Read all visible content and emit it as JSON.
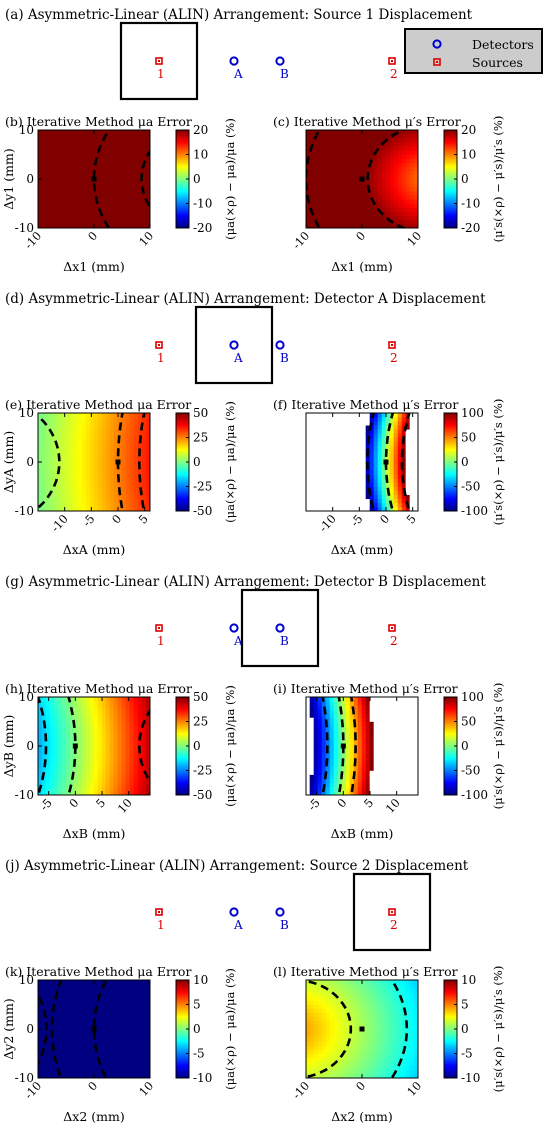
{
  "panels": {
    "a": {
      "title": "(a) Asymmetric-Linear (ALIN) Arrangement: Source 1 Displacement",
      "box_on": "source_1"
    },
    "d": {
      "title": "(d) Asymmetric-Linear (ALIN) Arrangement: Detector A Displacement",
      "box_on": "detector_A"
    },
    "g": {
      "title": "(g) Asymmetric-Linear (ALIN) Arrangement: Detector B Displacement",
      "box_on": "detector_B"
    },
    "j": {
      "title": "(j) Asymmetric-Linear (ALIN) Arrangement: Source 2 Displacement",
      "box_on": "source_2"
    }
  },
  "arrangement": {
    "labels": {
      "s1": "1",
      "dA": "A",
      "dB": "B",
      "s2": "2"
    },
    "legend": {
      "detectors": "Detectors",
      "sources": "Sources"
    },
    "colors": {
      "detector": "#0000cc",
      "source": "#dd0000"
    }
  },
  "chart_data": [
    {
      "id": "b",
      "type": "heatmap",
      "title": "(b) Iterative Method μa Error",
      "xlabel": "Δx1 (mm)",
      "ylabel": "Δy1 (mm)",
      "clabel": "(μa(×ρ) − μa)/μa (%)",
      "xlim": [
        -10,
        10
      ],
      "ylim": [
        -10,
        10
      ],
      "xticks": [
        -10,
        0,
        10
      ],
      "yticks": [
        10,
        0,
        -10
      ],
      "clim": [
        -20,
        20
      ],
      "cticks": [
        20,
        10,
        0,
        -10,
        -20
      ],
      "colormap": "jet",
      "field": {
        "kind": "radial",
        "cx": 20,
        "cy": 0,
        "k": 0.9,
        "c0": 20
      },
      "contours": [
        {
          "kind": "arc",
          "cx": 20,
          "cy": 0,
          "r": 20
        },
        {
          "kind": "arc",
          "cx": 20,
          "cy": 0,
          "r": 11.5
        }
      ],
      "marker": [
        0,
        0
      ]
    },
    {
      "id": "c",
      "type": "heatmap",
      "title": "(c) Iterative Method μ′s Error",
      "xlabel": "Δx1 (mm)",
      "ylabel": "",
      "clabel": "(μ′s(×ρ) − μ′s)/μ′s (%)",
      "xlim": [
        -10,
        10
      ],
      "ylim": [
        -10,
        10
      ],
      "xticks": [
        -10,
        0,
        10
      ],
      "yticks": [],
      "clim": [
        -20,
        20
      ],
      "cticks": [
        20,
        10,
        0,
        -10,
        -20
      ],
      "colormap": "jet",
      "field": {
        "kind": "radial",
        "cx": 12,
        "cy": 0,
        "k": 0.95,
        "c0": 9
      },
      "contours": [
        {
          "kind": "arc",
          "cx": 12,
          "cy": 0,
          "r": 11
        },
        {
          "kind": "arc",
          "cx": 12,
          "cy": 0,
          "r": 22
        }
      ],
      "marker": [
        0,
        0
      ]
    },
    {
      "id": "e",
      "type": "heatmap",
      "title": "(e) Iterative Method μa Error",
      "xlabel": "ΔxA (mm)",
      "ylabel": "ΔyA (mm)",
      "clabel": "(μa(×ρ) − μa)/μa (%)",
      "xlim": [
        -15,
        6
      ],
      "ylim": [
        -10,
        10
      ],
      "xticks": [
        -10,
        -5,
        0,
        5
      ],
      "yticks": [
        10,
        0,
        -10
      ],
      "clim": [
        -50,
        50
      ],
      "cticks": [
        50,
        25,
        0,
        -25,
        -50
      ],
      "colormap": "jet",
      "field": {
        "kind": "band",
        "cx": 60,
        "cy": 0,
        "a": -1.8,
        "b": 0.008,
        "c0": 25
      },
      "contours": [
        {
          "kind": "arc",
          "cx": 60,
          "cy": 0,
          "r": 60
        },
        {
          "kind": "arc",
          "cx": 60,
          "cy": 0,
          "r": 56
        },
        {
          "kind": "arc",
          "cx": -24,
          "cy": 0,
          "r": 13
        }
      ],
      "marker": [
        0,
        0
      ]
    },
    {
      "id": "f",
      "type": "heatmap",
      "title": "(f) Iterative Method μ′s Error",
      "xlabel": "ΔxA (mm)",
      "ylabel": "",
      "clabel": "(μ′s(×ρ) − μ′s)/μ′s (%)",
      "xlim": [
        -15,
        6
      ],
      "ylim": [
        -10,
        10
      ],
      "xticks": [
        -10,
        -5,
        0,
        5
      ],
      "yticks": [],
      "clim": [
        -100,
        100
      ],
      "cticks": [
        100,
        50,
        0,
        -50,
        -100
      ],
      "colormap": "jet",
      "field": {
        "kind": "band",
        "cx": 40,
        "cy": 0,
        "a": -27,
        "b": 0.05,
        "c0": 6,
        "cut": 100
      },
      "contours": [
        {
          "kind": "arc",
          "cx": 40,
          "cy": 0,
          "r": 40
        },
        {
          "kind": "arc",
          "cx": 40,
          "cy": 0,
          "r": 43.5
        },
        {
          "kind": "arc",
          "cx": 40,
          "cy": 0,
          "r": 37
        }
      ],
      "marker": [
        0,
        0
      ]
    },
    {
      "id": "h",
      "type": "heatmap",
      "title": "(h) Iterative Method μa Error",
      "xlabel": "ΔxB (mm)",
      "ylabel": "ΔyB (mm)",
      "clabel": "(μa(×ρ) − μa)/μa (%)",
      "xlim": [
        -7,
        14
      ],
      "ylim": [
        -10,
        10
      ],
      "xticks": [
        -5,
        0,
        5,
        10
      ],
      "yticks": [
        10,
        0,
        -10
      ],
      "clim": [
        -50,
        50
      ],
      "cticks": [
        50,
        25,
        0,
        -25,
        -50
      ],
      "colormap": "jet",
      "field": {
        "kind": "band",
        "cx": -40,
        "cy": 0,
        "a": 2.9,
        "b": 0.012,
        "c0": 0
      },
      "contours": [
        {
          "kind": "arc",
          "cx": -40,
          "cy": 0,
          "r": 40
        },
        {
          "kind": "arc",
          "cx": -40,
          "cy": 0,
          "r": 34.5
        },
        {
          "kind": "arc",
          "cx": 26,
          "cy": 0,
          "r": 14
        }
      ],
      "marker": [
        0,
        0
      ]
    },
    {
      "id": "i",
      "type": "heatmap",
      "title": "(i) Iterative Method μ′s Error",
      "xlabel": "ΔxB (mm)",
      "ylabel": "",
      "clabel": "(μ′s(×ρ) − μ′s)/μ′s (%)",
      "xlim": [
        -7,
        14
      ],
      "ylim": [
        -10,
        10
      ],
      "xticks": [
        -5,
        0,
        5,
        10
      ],
      "yticks": [],
      "clim": [
        -100,
        100
      ],
      "cticks": [
        100,
        50,
        0,
        -50,
        -100
      ],
      "colormap": "jet",
      "field": {
        "kind": "band",
        "cx": -60,
        "cy": 0,
        "a": 18,
        "b": 0.01,
        "c0": 0,
        "cut": 100
      },
      "contours": [
        {
          "kind": "arc",
          "cx": -60,
          "cy": 0,
          "r": 60
        },
        {
          "kind": "arc",
          "cx": -60,
          "cy": 0,
          "r": 57
        },
        {
          "kind": "arc",
          "cx": -60,
          "cy": 0,
          "r": 62.3
        }
      ],
      "marker": [
        0,
        0
      ]
    },
    {
      "id": "k",
      "type": "heatmap",
      "title": "(k) Iterative Method μa Error",
      "xlabel": "Δx2 (mm)",
      "ylabel": "Δy2 (mm)",
      "clabel": "(μa(×ρ) − μa)/μa (%)",
      "xlim": [
        -10,
        10
      ],
      "ylim": [
        -10,
        10
      ],
      "xticks": [
        -10,
        0,
        10
      ],
      "yticks": [
        10,
        0,
        -10
      ],
      "clim": [
        -10,
        10
      ],
      "cticks": [
        10,
        5,
        0,
        -5,
        -10
      ],
      "colormap": "jet",
      "field": {
        "kind": "radial",
        "cx": 24,
        "cy": 0,
        "k": -0.38,
        "c0": -9
      },
      "contours": [
        {
          "kind": "arc",
          "cx": 24,
          "cy": 0,
          "r": 24
        },
        {
          "kind": "arc",
          "cx": 24,
          "cy": 0,
          "r": 31.5
        },
        {
          "kind": "arc",
          "cx": -26,
          "cy": 0,
          "r": 17.5
        }
      ],
      "marker": [
        0,
        0
      ]
    },
    {
      "id": "l",
      "type": "heatmap",
      "title": "(l) Iterative Method μ′s Error",
      "xlabel": "Δx2 (mm)",
      "ylabel": "",
      "clabel": "(μ′s(×ρ) − μ′s)/μ′s (%)",
      "xlim": [
        -10,
        10
      ],
      "ylim": [
        -10,
        10
      ],
      "xticks": [
        -10,
        0,
        10
      ],
      "yticks": [],
      "clim": [
        -10,
        10
      ],
      "cticks": [
        10,
        5,
        0,
        -5,
        -10
      ],
      "colormap": "jet",
      "field": {
        "kind": "radial",
        "cx": -12,
        "cy": 0,
        "k": -0.35,
        "c0": 5
      },
      "contours": [
        {
          "kind": "arc",
          "cx": -12,
          "cy": 0,
          "r": 10
        },
        {
          "kind": "arc",
          "cx": -12,
          "cy": 0,
          "r": 20
        }
      ],
      "marker": [
        0,
        0
      ]
    }
  ]
}
